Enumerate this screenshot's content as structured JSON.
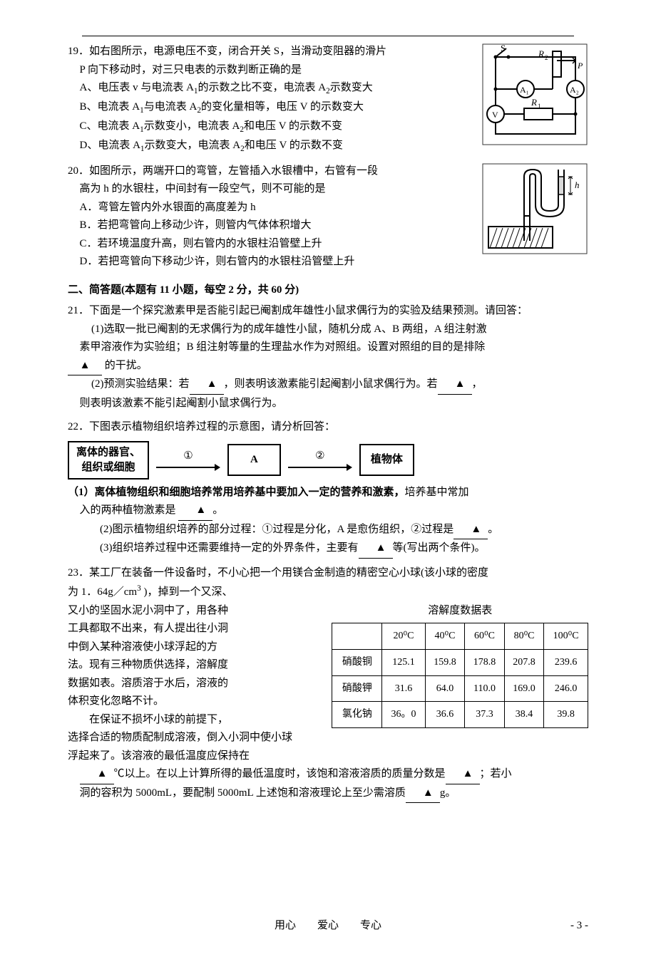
{
  "page": {
    "footer_center": "用心　　爱心　　专心",
    "footer_page": "- 3 -"
  },
  "q19": {
    "stem1": "19．如右图所示，电源电压不变，闭合开关 S，当滑动变阻器的滑片",
    "stem2": "P 向下移动时，对三只电表的示数判断正确的是",
    "a": "A、电压表 v 与电流表 A",
    "a_sub": "1",
    "a_tail": "的示数之比不变，电流表 A",
    "a_sub2": "2",
    "a_end": "示数变大",
    "b": "B、电流表 A",
    "b_sub1": "1",
    "b_mid": "与电流表 A",
    "b_sub2": "2",
    "b_tail": "的变化量相等，电压 V 的示数变大",
    "c": "C、电流表 A",
    "c_sub1": "1",
    "c_mid": "示数变小，电流表 A",
    "c_sub2": "2",
    "c_tail": "和电压 V 的示数不变",
    "d": "D、电流表 A",
    "d_sub1": "1",
    "d_mid": "示数变大，电流表 A",
    "d_sub2": "2",
    "d_tail": "和电压 V 的示数不变",
    "circuit_labels": {
      "S": "S",
      "R2": "R₂",
      "P": "P",
      "A1": "A₁",
      "A2": "A₂",
      "V": "V",
      "R1": "R₁"
    }
  },
  "q20": {
    "stem1": "20．如图所示，两端开口的弯管，左管插入水银槽中，右管有一段",
    "stem2": "高为 h 的水银柱，中间封有一段空气，则不可能的是",
    "a": "A．弯管左管内外水银面的高度差为 h",
    "b": "B．若把弯管向上移动少许，则管内气体体积增大",
    "c": "C．若环境温度升高，则右管内的水银柱沿管壁上升",
    "d": "D．若把弯管向下移动少许，则右管内的水银柱沿管壁上升",
    "tube_label_h": "h"
  },
  "section2": {
    "heading": "二、简答题(本题有 11 小题，每空 2 分，共 60 分)"
  },
  "q21": {
    "stem": "21．下面是一个探究激素甲是否能引起已阉割成年雄性小鼠求偶行为的实验及结果预测。请回答：",
    "p1a": "(1)选取一批已阉割的无求偶行为的成年雄性小鼠，随机分成 A、B 两组，A 组注射激",
    "p1b": "素甲溶液作为实验组；B 组注射等量的生理盐水作为对照组。设置对照组的目的是排除",
    "p1c_tail": "的干扰。",
    "p2a": "(2)预测实验结果：若",
    "p2b": "，则表明该激素能引起阉割小鼠求偶行为。若",
    "p2c": "，",
    "p2d": "则表明该激素不能引起阉割小鼠求偶行为。"
  },
  "q22": {
    "stem": "22．下图表示植物组织培养过程的示意图，请分析回答：",
    "flow": {
      "box1_line1": "离体的器官、",
      "box1_line2": "组织或细胞",
      "arrow1": "①",
      "boxA": "A",
      "arrow2": "②",
      "box3": "植物体"
    },
    "p1a": "（1）离体植物组织和细胞培养常用培养基中要加入一定的营养和激素，",
    "p1b": "培养基中常加",
    "p1c": "入的两种植物激素是",
    "p1d": "。",
    "p2a": "(2)图示植物组织培养的部分过程：①过程是分化，A 是愈伤组织，②过程是",
    "p2b": "。",
    "p3a": "(3)组织培养过程中还需要维持一定的外界条件，主要有",
    "p3b": "等(写出两个条件)。"
  },
  "q23": {
    "stem_a": "23．某工厂在装备一件设备时，不小心把一个用镁合金制造的精密空心小球(该小球的密度",
    "stem_b_pre": "为 1．64g／cm",
    "stem_b_sup": "3",
    "stem_b_post": " )，掉到一个又深、",
    "left_lines": [
      "又小的坚固水泥小洞中了，用各种",
      "工具都取不出来，有人提出往小洞",
      "中倒入某种溶液使小球浮起的方",
      "法。现有三种物质供选择，溶解度",
      "数据如表。溶质溶于水后，溶液的",
      "体积变化忽略不计。",
      "　　在保证不损坏小球的前提下，"
    ],
    "after": "选择合适的物质配制成溶液，倒入小洞中使小球",
    "after2": "浮起来了。该溶液的最低温度应保持在",
    "tail1_b": "℃以上。在以上计算所得的最低温度时，该饱和溶液溶质的质量分数是",
    "tail1_c": "；若小",
    "tail2a": "洞的容积为 5000mL，要配制 5000mL 上述饱和溶液理论上至少需溶质",
    "tail2b": "g。",
    "table": {
      "caption": "溶解度数据表",
      "headers": [
        "",
        "20⁰C",
        "40⁰C",
        "60⁰C",
        "80⁰C",
        "100⁰C"
      ],
      "rows": [
        [
          "硝酸铜",
          "125.1",
          "159.8",
          "178.8",
          "207.8",
          "239.6"
        ],
        [
          "硝酸钾",
          "31.6",
          "64.0",
          "110.0",
          "169.0",
          "246.0"
        ],
        [
          "氯化钠",
          "36。0",
          "36.6",
          "37.3",
          "38.4",
          "39.8"
        ]
      ]
    }
  }
}
